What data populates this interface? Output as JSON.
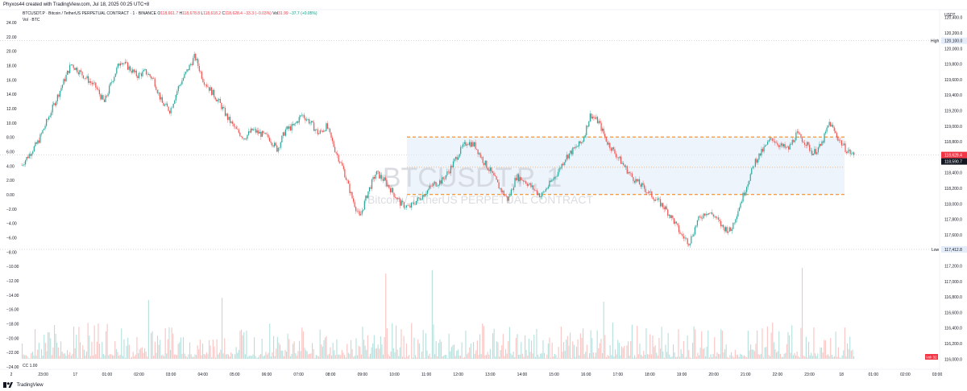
{
  "header": {
    "caption": "Phyxos44 created with TradingView.com, Jul 18, 2025 00:25 UTC+8"
  },
  "legend": {
    "symbol": "BTCUSDT.P · Bitcoin / TetherUS PERPETUAL CONTRACT · 1 · BINANCE",
    "open_label": "O",
    "open": "118,661.7",
    "high_label": "H",
    "high": "118,678.8",
    "low_label": "L",
    "low": "118,618.2",
    "close_label": "C",
    "close": "118,628.4",
    "change": "−33.3 (−0.03%)",
    "vol_label": "Vol",
    "vol": "31.99",
    "vol_change": "−37.7 (+0.05%)",
    "indicator": "Vol · BTC"
  },
  "watermark": {
    "ticker": "BTCUSDT.P, 1",
    "name": "Bitcoin / TetherUS PERPETUAL CONTRACT"
  },
  "footer": {
    "brand": "TradingView",
    "cc_label": "CC",
    "cc_value": "1.00"
  },
  "colors": {
    "up": "#26a69a",
    "down": "#ef5350",
    "zone_line": "#f57c00",
    "zone_fill": "#e3ecf8",
    "high_low_line": "#b2b5be",
    "price_badge": "#f23645",
    "close_badge": "#131722"
  },
  "chart_data": {
    "type": "candlestick",
    "right_axis": {
      "unit": "USDT",
      "ticks": [
        "120,400.0",
        "120,200.0",
        "120,000.0",
        "119,800.0",
        "119,600.0",
        "119,400.0",
        "119,200.0",
        "119,000.0",
        "118,800.0",
        "118,600.0",
        "118,400.0",
        "118,200.0",
        "118,000.0",
        "117,800.0",
        "117,600.0",
        "117,400.0",
        "117,200.0",
        "117,000.0",
        "116,800.0",
        "116,600.0",
        "116,400.0",
        "116,200.0",
        "116,000.0"
      ],
      "range": [
        115900,
        120500
      ]
    },
    "left_axis": {
      "ticks": [
        "24.00",
        "22.00",
        "20.00",
        "18.00",
        "16.00",
        "14.00",
        "12.00",
        "10.00",
        "8.00",
        "6.00",
        "4.00",
        "2.00",
        "0.00",
        "−2.00",
        "−4.00",
        "−6.00",
        "−8.00",
        "−10.00",
        "−12.00",
        "−14.00",
        "−16.00",
        "−18.00",
        "−20.00",
        "−22.00",
        "−24.00"
      ],
      "range": [
        -24,
        24
      ]
    },
    "time_axis": {
      "ticks": [
        "2",
        "23:00",
        "17",
        "01:00",
        "02:00",
        "03:00",
        "04:00",
        "05:00",
        "06:00",
        "07:00",
        "08:00",
        "09:00",
        "10:00",
        "11:00",
        "12:00",
        "13:00",
        "14:00",
        "15:00",
        "16:00",
        "17:00",
        "18:00",
        "19:00",
        "20:00",
        "21:00",
        "22:00",
        "23:00",
        "18",
        "01:00",
        "02:00",
        "03:00"
      ]
    },
    "high": {
      "label": "High",
      "value": 120100.0,
      "text": "120,100.0"
    },
    "low": {
      "label": "Low",
      "value": 117412.8,
      "text": "117,412.8"
    },
    "last_price": {
      "value": 118628.4,
      "text": "118,628.4"
    },
    "last_close": {
      "value": 118590.7,
      "text": "118,590.7"
    },
    "zone": {
      "top": 118860,
      "mid": 118470,
      "bottom": 118120
    },
    "volume_label": "Volume",
    "volume_value": "32",
    "price_path": [
      [
        0,
        118500
      ],
      [
        2,
        118800
      ],
      [
        4,
        119300
      ],
      [
        6,
        119800
      ],
      [
        7,
        119700
      ],
      [
        9,
        119500
      ],
      [
        10,
        119300
      ],
      [
        11,
        119600
      ],
      [
        12,
        119850
      ],
      [
        13,
        119750
      ],
      [
        14,
        119650
      ],
      [
        15,
        119700
      ],
      [
        16,
        119600
      ],
      [
        17,
        119300
      ],
      [
        18,
        119200
      ],
      [
        19,
        119500
      ],
      [
        20,
        119700
      ],
      [
        21,
        119900
      ],
      [
        22,
        119600
      ],
      [
        23,
        119450
      ],
      [
        24,
        119300
      ],
      [
        25,
        119100
      ],
      [
        26,
        118950
      ],
      [
        27,
        118850
      ],
      [
        28,
        118950
      ],
      [
        29,
        118900
      ],
      [
        30,
        118850
      ],
      [
        31,
        118700
      ],
      [
        32,
        118950
      ],
      [
        33,
        119000
      ],
      [
        34,
        119150
      ],
      [
        35,
        119050
      ],
      [
        36,
        118900
      ],
      [
        37,
        119000
      ],
      [
        38,
        118700
      ],
      [
        39,
        118450
      ],
      [
        40,
        118100
      ],
      [
        41,
        117820
      ],
      [
        42,
        118150
      ],
      [
        43,
        118400
      ],
      [
        44,
        118300
      ],
      [
        45,
        118150
      ],
      [
        46,
        118000
      ],
      [
        47,
        117950
      ],
      [
        48,
        118050
      ],
      [
        49,
        118150
      ],
      [
        50,
        118250
      ],
      [
        51,
        118300
      ],
      [
        52,
        118450
      ],
      [
        53,
        118650
      ],
      [
        54,
        118800
      ],
      [
        55,
        118750
      ],
      [
        56,
        118550
      ],
      [
        57,
        118400
      ],
      [
        58,
        118200
      ],
      [
        59,
        118050
      ],
      [
        60,
        118350
      ],
      [
        61,
        118300
      ],
      [
        62,
        118200
      ],
      [
        63,
        118100
      ],
      [
        64,
        118250
      ],
      [
        65,
        118400
      ],
      [
        66,
        118600
      ],
      [
        67,
        118700
      ],
      [
        68,
        118800
      ],
      [
        69,
        119150
      ],
      [
        70,
        119050
      ],
      [
        71,
        118800
      ],
      [
        72,
        118650
      ],
      [
        73,
        118500
      ],
      [
        74,
        118350
      ],
      [
        75,
        118250
      ],
      [
        76,
        118150
      ],
      [
        77,
        118050
      ],
      [
        78,
        117950
      ],
      [
        79,
        117800
      ],
      [
        80,
        117600
      ],
      [
        81,
        117500
      ],
      [
        82,
        117780
      ],
      [
        83,
        117900
      ],
      [
        84,
        117850
      ],
      [
        85,
        117700
      ],
      [
        86,
        117650
      ],
      [
        87,
        117950
      ],
      [
        88,
        118250
      ],
      [
        89,
        118550
      ],
      [
        90,
        118700
      ],
      [
        91,
        118850
      ],
      [
        92,
        118750
      ],
      [
        93,
        118700
      ],
      [
        94,
        118900
      ],
      [
        95,
        118800
      ],
      [
        96,
        118650
      ],
      [
        97,
        118750
      ],
      [
        98,
        119050
      ],
      [
        99,
        118850
      ],
      [
        100,
        118700
      ],
      [
        101,
        118620
      ]
    ]
  }
}
